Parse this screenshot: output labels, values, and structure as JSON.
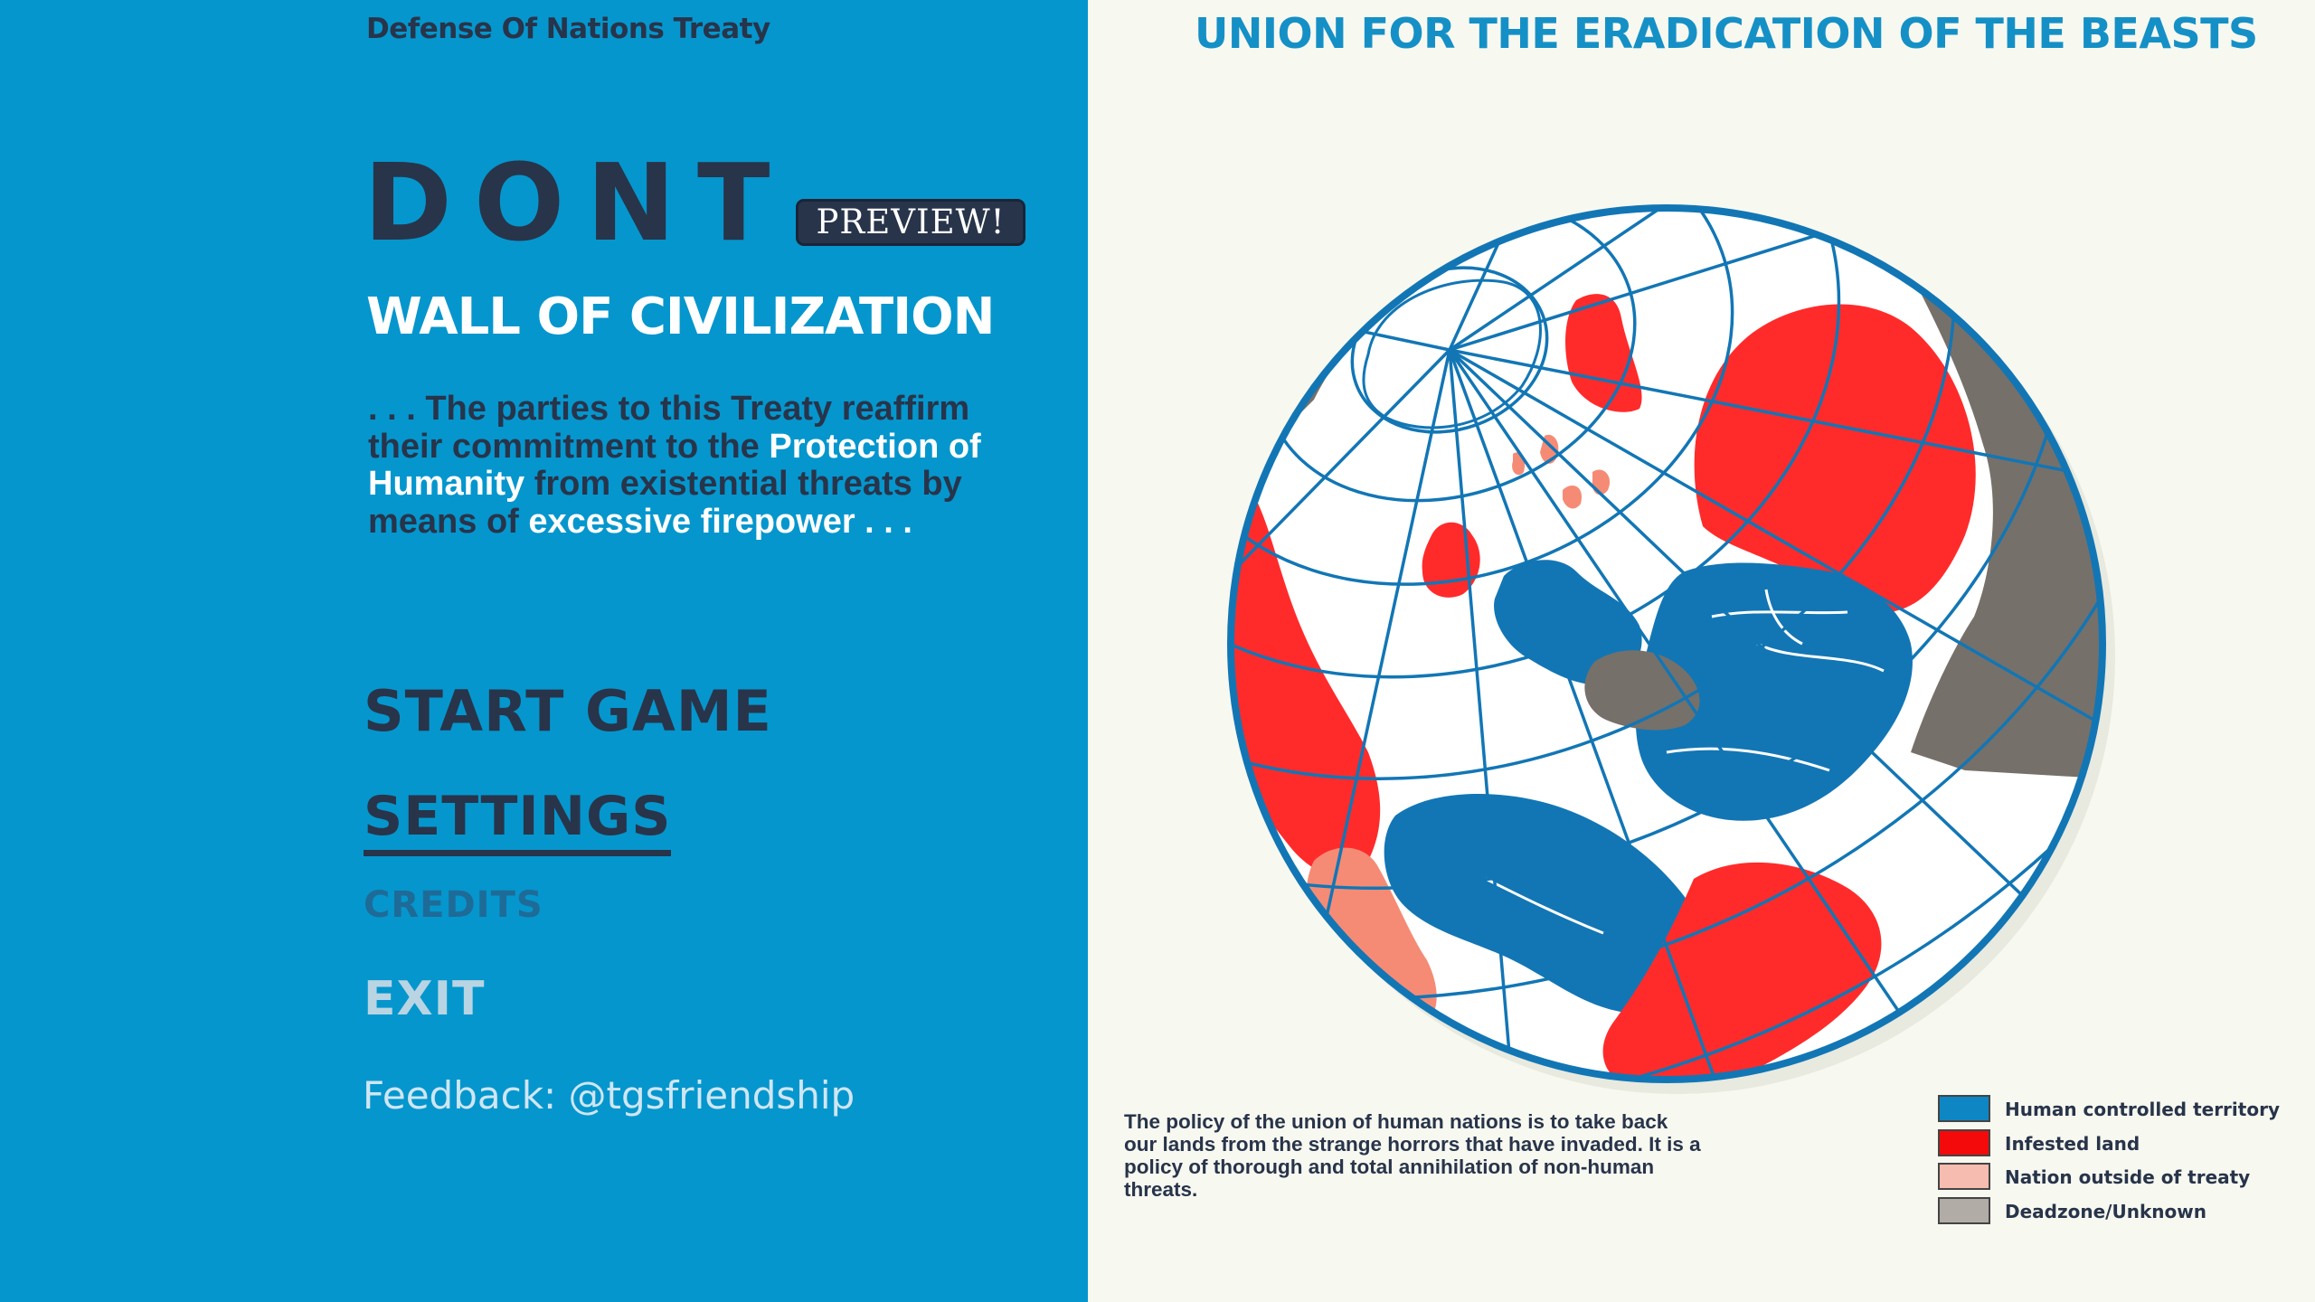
{
  "header": {
    "org_name": "Defense Of Nations Treaty"
  },
  "logo": {
    "title": "DONT",
    "badge": "PREVIEW!"
  },
  "subtitle": "WALL OF CIVILIZATION",
  "quote": {
    "part1": ". . . The parties to this Treaty reaffirm their commitment to the ",
    "highlight1": "Protection of Humanity",
    "part2": " from existential threats by means of ",
    "highlight2": "excessive firepower . . ."
  },
  "menu": {
    "start": "START GAME",
    "settings": "SETTINGS",
    "credits": "CREDITS",
    "exit": "EXIT"
  },
  "feedback": "Feedback: @tgsfriendship",
  "map": {
    "title": "UNION FOR THE ERADICATION OF THE BEASTS",
    "policy": "The policy of the union of human nations is to take back our lands from the strange horrors that have invaded. It is a policy of thorough and total annihilation of non-human threats.",
    "legend": [
      {
        "label": "Human controlled territory",
        "color": "#0e86c4"
      },
      {
        "label": "Infested land",
        "color": "#f40a0a"
      },
      {
        "label": "Nation outside of treaty",
        "color": "#f7bcb0"
      },
      {
        "label": "Deadzone/Unknown",
        "color": "#b2aca6"
      }
    ]
  },
  "colors": {
    "left_panel": "#0596cd",
    "dark_navy": "#28344a",
    "map_blue": "#1276b5",
    "map_red": "#ff2b2b",
    "map_salmon": "#f58b75",
    "map_gray": "#76706a"
  }
}
